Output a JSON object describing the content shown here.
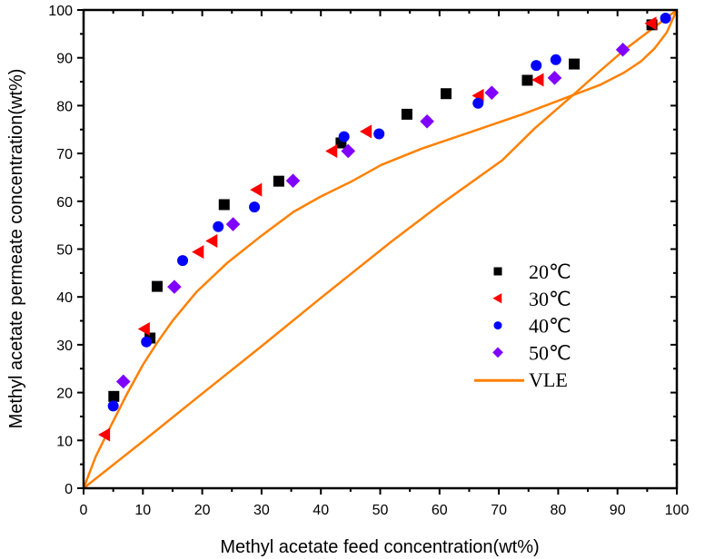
{
  "chart_data": {
    "type": "scatter",
    "title": "",
    "xlabel": "Methyl acetate feed concentration(wt%)",
    "ylabel": "Methyl acetate permeate concentration(wt%)",
    "xlim": [
      0,
      100
    ],
    "ylim": [
      0,
      100
    ],
    "xticks": [
      0,
      10,
      20,
      30,
      40,
      50,
      60,
      70,
      80,
      90,
      100
    ],
    "yticks": [
      0,
      10,
      20,
      30,
      40,
      50,
      60,
      70,
      80,
      90,
      100
    ],
    "grid": false,
    "legend_position": "center-right",
    "series": [
      {
        "name": "20℃",
        "marker": "square",
        "color": "#000000",
        "points": [
          [
            5.1,
            19.2
          ],
          [
            11.2,
            31.4
          ],
          [
            12.4,
            42.2
          ],
          [
            23.7,
            59.3
          ],
          [
            32.9,
            64.2
          ],
          [
            43.4,
            72.2
          ],
          [
            54.5,
            78.2
          ],
          [
            61.1,
            82.5
          ],
          [
            74.8,
            85.3
          ],
          [
            82.7,
            88.7
          ],
          [
            95.8,
            96.9
          ]
        ]
      },
      {
        "name": "30℃",
        "marker": "triangle-left",
        "color": "#ff0000",
        "points": [
          [
            3.6,
            11.2
          ],
          [
            10.3,
            33.3
          ],
          [
            19.4,
            49.4
          ],
          [
            21.7,
            51.7
          ],
          [
            29.2,
            62.4
          ],
          [
            41.9,
            70.5
          ],
          [
            47.7,
            74.6
          ],
          [
            66.6,
            82.1
          ],
          [
            76.7,
            85.4
          ],
          [
            95.7,
            97.2
          ]
        ]
      },
      {
        "name": "40℃",
        "marker": "circle",
        "color": "#0000ff",
        "points": [
          [
            5.0,
            17.2
          ],
          [
            10.6,
            30.6
          ],
          [
            16.7,
            47.6
          ],
          [
            22.7,
            54.7
          ],
          [
            28.8,
            58.8
          ],
          [
            43.9,
            73.5
          ],
          [
            49.8,
            74.1
          ],
          [
            66.5,
            80.5
          ],
          [
            76.3,
            88.4
          ],
          [
            79.6,
            89.6
          ],
          [
            98.1,
            98.3
          ]
        ]
      },
      {
        "name": "50℃",
        "marker": "diamond",
        "color": "#8000ff",
        "points": [
          [
            6.7,
            22.3
          ],
          [
            15.3,
            42.1
          ],
          [
            25.2,
            55.2
          ],
          [
            35.3,
            64.3
          ],
          [
            44.6,
            70.5
          ],
          [
            57.9,
            76.7
          ],
          [
            68.8,
            82.7
          ],
          [
            79.4,
            85.8
          ],
          [
            90.9,
            91.7
          ]
        ]
      }
    ],
    "lines": [
      {
        "name": "VLE",
        "color": "#ff8000",
        "in_legend": true,
        "points": [
          [
            0,
            0
          ],
          [
            2,
            6.5
          ],
          [
            4.5,
            12.8
          ],
          [
            7.4,
            19.9
          ],
          [
            10,
            25.8
          ],
          [
            12.5,
            30.6
          ],
          [
            15,
            35
          ],
          [
            19,
            41
          ],
          [
            24.2,
            47.1
          ],
          [
            30,
            52.8
          ],
          [
            35.4,
            57.8
          ],
          [
            40,
            61
          ],
          [
            45.1,
            64.1
          ],
          [
            50.2,
            67.6
          ],
          [
            57,
            71
          ],
          [
            65.5,
            74.6
          ],
          [
            74,
            78.2
          ],
          [
            82.5,
            82.2
          ],
          [
            87,
            84.3
          ],
          [
            91.1,
            86.9
          ],
          [
            94,
            89.3
          ],
          [
            96.2,
            91.9
          ],
          [
            98.3,
            95.3
          ],
          [
            100,
            100
          ]
        ]
      },
      {
        "name": "diagonal",
        "color": "#ff8000",
        "in_legend": false,
        "points": [
          [
            0,
            0
          ],
          [
            9.9,
            9.7
          ],
          [
            20,
            19.8
          ],
          [
            30.3,
            30
          ],
          [
            40,
            39.8
          ],
          [
            51.8,
            51.5
          ],
          [
            60,
            59.2
          ],
          [
            70.6,
            68.6
          ],
          [
            76,
            75.2
          ],
          [
            82.5,
            82.2
          ],
          [
            87,
            87.2
          ],
          [
            91.1,
            91.6
          ],
          [
            96.2,
            96.4
          ],
          [
            100,
            100
          ]
        ]
      }
    ]
  }
}
